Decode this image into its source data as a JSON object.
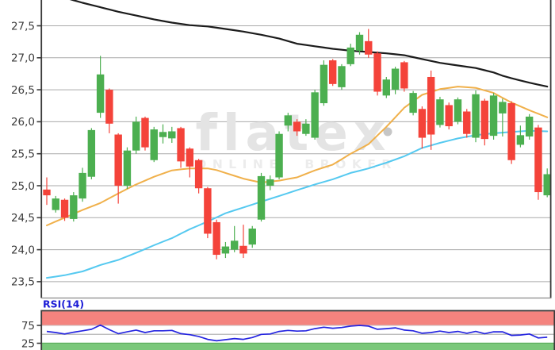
{
  "watermark": {
    "brand": "flatex",
    "tagline": "ONLINE BROKER"
  },
  "chart_data": {
    "type": "candlestick",
    "title": "",
    "xlabel": "",
    "ylabel": "",
    "grid": true,
    "y_axis": {
      "ticks": [
        {
          "label": "27,5",
          "value": 27.5
        },
        {
          "label": "27,0",
          "value": 27.0
        },
        {
          "label": "26,5",
          "value": 26.5
        },
        {
          "label": "26,0",
          "value": 26.0
        },
        {
          "label": "25,5",
          "value": 25.5
        },
        {
          "label": "25,0",
          "value": 25.0
        },
        {
          "label": "24,5",
          "value": 24.5
        },
        {
          "label": "24,0",
          "value": 24.0
        },
        {
          "label": "23,5",
          "value": 23.5
        }
      ],
      "range": [
        23.25,
        27.9
      ]
    },
    "candles_format": [
      "open",
      "high",
      "low",
      "close"
    ],
    "candles": [
      [
        24.94,
        25.13,
        24.7,
        24.85
      ],
      [
        24.62,
        24.84,
        24.58,
        24.8
      ],
      [
        24.78,
        24.8,
        24.45,
        24.5
      ],
      [
        24.48,
        24.9,
        24.44,
        24.85
      ],
      [
        24.8,
        25.28,
        24.75,
        25.2
      ],
      [
        25.14,
        25.9,
        25.1,
        25.87
      ],
      [
        26.14,
        27.03,
        26.06,
        26.74
      ],
      [
        26.5,
        26.52,
        25.82,
        25.97
      ],
      [
        25.8,
        25.82,
        24.72,
        25.0
      ],
      [
        25.0,
        25.6,
        24.95,
        25.55
      ],
      [
        25.55,
        26.08,
        25.5,
        26.0
      ],
      [
        26.06,
        26.08,
        25.55,
        25.6
      ],
      [
        25.4,
        25.92,
        25.37,
        25.88
      ],
      [
        25.76,
        25.96,
        25.66,
        25.84
      ],
      [
        25.74,
        25.92,
        25.67,
        25.85
      ],
      [
        25.9,
        25.92,
        25.28,
        25.38
      ],
      [
        25.58,
        25.6,
        25.13,
        25.3
      ],
      [
        25.4,
        25.42,
        24.88,
        24.96
      ],
      [
        24.96,
        24.98,
        24.18,
        24.25
      ],
      [
        24.43,
        24.47,
        23.85,
        23.92
      ],
      [
        23.94,
        24.12,
        23.87,
        24.05
      ],
      [
        24.0,
        24.37,
        23.96,
        24.14
      ],
      [
        24.06,
        24.39,
        23.87,
        23.94
      ],
      [
        24.08,
        24.37,
        24.03,
        24.33
      ],
      [
        24.47,
        25.2,
        24.44,
        25.15
      ],
      [
        25.0,
        25.16,
        24.93,
        25.1
      ],
      [
        25.13,
        25.85,
        25.1,
        25.81
      ],
      [
        25.94,
        26.14,
        25.85,
        26.1
      ],
      [
        26.0,
        26.04,
        25.78,
        25.85
      ],
      [
        25.81,
        26.04,
        25.78,
        25.97
      ],
      [
        25.75,
        26.5,
        25.72,
        26.46
      ],
      [
        26.29,
        26.96,
        26.25,
        26.89
      ],
      [
        26.96,
        26.98,
        26.56,
        26.59
      ],
      [
        26.54,
        26.9,
        26.5,
        26.87
      ],
      [
        26.9,
        27.22,
        26.87,
        27.16
      ],
      [
        27.11,
        27.4,
        27.05,
        27.36
      ],
      [
        27.26,
        27.45,
        27.0,
        27.05
      ],
      [
        27.07,
        27.1,
        26.41,
        26.47
      ],
      [
        26.41,
        26.7,
        26.37,
        26.66
      ],
      [
        26.5,
        26.86,
        26.43,
        26.83
      ],
      [
        26.93,
        26.95,
        26.47,
        26.52
      ],
      [
        26.14,
        26.48,
        26.1,
        26.45
      ],
      [
        26.2,
        26.24,
        25.58,
        25.75
      ],
      [
        26.7,
        26.8,
        25.56,
        25.8
      ],
      [
        25.95,
        26.39,
        25.91,
        26.35
      ],
      [
        26.26,
        26.3,
        25.88,
        25.93
      ],
      [
        26.0,
        26.38,
        25.96,
        26.35
      ],
      [
        26.16,
        26.2,
        25.75,
        25.81
      ],
      [
        25.75,
        26.49,
        25.68,
        26.43
      ],
      [
        26.33,
        26.36,
        25.63,
        25.73
      ],
      [
        25.78,
        26.45,
        25.72,
        26.41
      ],
      [
        26.13,
        26.36,
        25.77,
        26.31
      ],
      [
        26.29,
        26.32,
        25.34,
        25.4
      ],
      [
        25.64,
        25.94,
        25.6,
        25.79
      ],
      [
        25.77,
        26.12,
        25.72,
        26.08
      ],
      [
        25.91,
        25.95,
        24.78,
        24.9
      ],
      [
        24.85,
        25.27,
        24.82,
        25.18
      ]
    ],
    "overlays": {
      "ma_long_black": [
        28.03,
        27.985,
        27.94,
        27.9,
        27.86,
        27.825,
        27.79,
        27.755,
        27.72,
        27.69,
        27.66,
        27.63,
        27.6,
        27.575,
        27.55,
        27.53,
        27.51,
        27.5,
        27.49,
        27.47,
        27.45,
        27.43,
        27.41,
        27.385,
        27.36,
        27.33,
        27.3,
        27.26,
        27.22,
        27.2,
        27.18,
        27.16,
        27.14,
        27.125,
        27.11,
        27.1,
        27.09,
        27.08,
        27.07,
        27.055,
        27.04,
        27.01,
        26.98,
        26.95,
        26.92,
        26.9,
        26.88,
        26.86,
        26.84,
        26.805,
        26.77,
        26.72,
        26.68,
        26.645,
        26.61,
        26.58,
        26.55
      ],
      "ma_mid_orange": [
        24.38,
        24.44,
        24.5,
        24.56,
        24.62,
        24.675,
        24.73,
        24.805,
        24.88,
        24.95,
        25.02,
        25.08,
        25.14,
        25.19,
        25.24,
        25.255,
        25.27,
        25.27,
        25.27,
        25.245,
        25.2,
        25.155,
        25.11,
        25.08,
        25.05,
        25.065,
        25.08,
        25.105,
        25.13,
        25.185,
        25.24,
        25.285,
        25.33,
        25.415,
        25.5,
        25.575,
        25.65,
        25.785,
        25.92,
        26.07,
        26.22,
        26.32,
        26.42,
        26.465,
        26.51,
        26.53,
        26.55,
        26.54,
        26.53,
        26.49,
        26.45,
        26.375,
        26.3,
        26.24,
        26.18,
        26.125,
        26.07
      ],
      "ma_slow_cyan": [
        23.56,
        23.58,
        23.6,
        23.63,
        23.66,
        23.71,
        23.76,
        23.8,
        23.84,
        23.895,
        23.95,
        24.01,
        24.07,
        24.125,
        24.18,
        24.25,
        24.32,
        24.38,
        24.44,
        24.505,
        24.57,
        24.615,
        24.66,
        24.705,
        24.75,
        24.795,
        24.84,
        24.885,
        24.93,
        24.975,
        25.02,
        25.06,
        25.1,
        25.15,
        25.2,
        25.235,
        25.27,
        25.315,
        25.36,
        25.41,
        25.46,
        25.525,
        25.59,
        25.63,
        25.67,
        25.705,
        25.74,
        25.765,
        25.79,
        25.805,
        25.82,
        25.83,
        25.84,
        25.85,
        25.86,
        25.855,
        25.85
      ],
      "rsi": {
        "label": "RSI(14)",
        "upper_level": 75,
        "lower_level": 25,
        "upper_label": "75",
        "lower_label": "25",
        "values": [
          58,
          55,
          51,
          56,
          60,
          64,
          76,
          63,
          52,
          57,
          62,
          55,
          60,
          60,
          61,
          52,
          49,
          44,
          36,
          32,
          35,
          38,
          36,
          41,
          50,
          51,
          58,
          61,
          59,
          60,
          66,
          70,
          67,
          69,
          73,
          75,
          73,
          64,
          66,
          68,
          62,
          60,
          53,
          55,
          59,
          55,
          58,
          53,
          58,
          52,
          57,
          57,
          47,
          48,
          51,
          40,
          42
        ]
      }
    },
    "legend_position": "none",
    "colors": {
      "up": "#4caf50",
      "down": "#f4433a",
      "ma_black": "#1c1c1c",
      "ma_orange": "#f0b04a",
      "ma_cyan": "#55c9f0",
      "rsi_line": "#2525e0",
      "rsi_label": "#1b1bd6",
      "rsi_upper_band": "#f4837e",
      "rsi_lower_band": "#7ac87a",
      "grid": "#aaaaaa",
      "axis_text": "#3d3d3d",
      "border_dark": "#3a3a3a",
      "border_light": "#8a8a8a",
      "watermark": "#e4e4e4"
    }
  }
}
